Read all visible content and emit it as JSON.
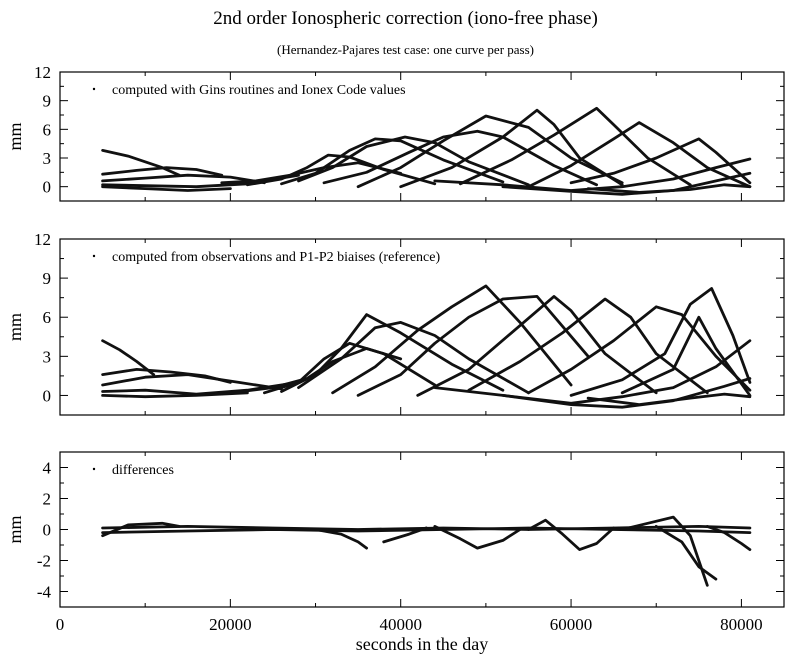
{
  "figure": {
    "title": "2nd order Ionospheric correction (iono-free phase)",
    "subtitle": "(Hernandez-Pajares test case: one curve per pass)",
    "xlabel": "seconds in the day"
  },
  "chart_data": [
    {
      "type": "line",
      "panel": "top",
      "legend": "computed with Gins routines and Ionex Code values",
      "legend_location": "top-left",
      "ylabel": "mm",
      "xlim": [
        0,
        85000
      ],
      "ylim": [
        -1.5,
        12
      ],
      "yticks": [
        0,
        3,
        6,
        9,
        12
      ],
      "xticks": [
        0,
        20000,
        40000,
        60000,
        80000
      ],
      "grid": false,
      "series": [
        {
          "x": [
            5000,
            8000,
            12000,
            14000
          ],
          "y": [
            3.8,
            3.2,
            2.0,
            1.2
          ]
        },
        {
          "x": [
            5000,
            9000,
            12500,
            16000,
            19000
          ],
          "y": [
            1.3,
            1.7,
            2.0,
            1.8,
            1.2
          ]
        },
        {
          "x": [
            5000,
            10000,
            15000,
            20000,
            24000
          ],
          "y": [
            0.6,
            0.9,
            1.2,
            1.0,
            0.4
          ]
        },
        {
          "x": [
            5000,
            10000,
            16000,
            22000,
            28000
          ],
          "y": [
            0.2,
            0.1,
            0.0,
            0.3,
            1.2
          ]
        },
        {
          "x": [
            5000,
            10000,
            15000,
            20000
          ],
          "y": [
            0.0,
            -0.2,
            -0.4,
            -0.2
          ]
        },
        {
          "x": [
            19000,
            23000,
            27000,
            31000,
            35000,
            40000
          ],
          "y": [
            0.4,
            0.6,
            1.2,
            2.0,
            2.5,
            1.4
          ]
        },
        {
          "x": [
            22000,
            26000,
            29000,
            31500,
            34000,
            38000,
            44000
          ],
          "y": [
            0.2,
            0.8,
            2.0,
            3.3,
            3.1,
            1.8,
            0.3
          ]
        },
        {
          "x": [
            26000,
            30000,
            34000,
            37000,
            40000,
            45000,
            52000
          ],
          "y": [
            0.3,
            1.4,
            3.8,
            5.0,
            4.8,
            2.8,
            0.5
          ]
        },
        {
          "x": [
            28000,
            32000,
            36000,
            40500,
            44000,
            48000,
            55000
          ],
          "y": [
            0.6,
            2.0,
            4.2,
            5.2,
            4.6,
            2.6,
            0.2
          ]
        },
        {
          "x": [
            31000,
            36000,
            41000,
            45000,
            49000,
            52000,
            58000,
            63000
          ],
          "y": [
            0.4,
            1.5,
            3.6,
            5.2,
            5.8,
            5.2,
            2.2,
            0.2
          ]
        },
        {
          "x": [
            35000,
            40000,
            45000,
            50000,
            55000,
            60000,
            66000
          ],
          "y": [
            0.0,
            2.0,
            4.8,
            7.4,
            6.2,
            3.0,
            0.4
          ]
        },
        {
          "x": [
            40000,
            46000,
            52000,
            56000,
            58000,
            61000,
            66000
          ],
          "y": [
            0.0,
            2.0,
            5.2,
            8.0,
            6.5,
            3.0,
            0.2
          ]
        },
        {
          "x": [
            47000,
            53000,
            58000,
            63000,
            65000,
            69000,
            74000
          ],
          "y": [
            0.3,
            2.8,
            5.4,
            8.2,
            6.5,
            3.0,
            0.2
          ]
        },
        {
          "x": [
            55000,
            60000,
            65000,
            68000,
            72000,
            76000,
            81000
          ],
          "y": [
            0.0,
            2.2,
            5.0,
            6.7,
            4.6,
            2.0,
            0.0
          ]
        },
        {
          "x": [
            60000,
            65000,
            70000,
            75000,
            77000,
            81000
          ],
          "y": [
            0.4,
            1.4,
            3.0,
            5.0,
            3.6,
            0.4
          ]
        },
        {
          "x": [
            44000,
            52000,
            60000,
            66000,
            72000,
            77000,
            81000
          ],
          "y": [
            0.6,
            0.2,
            -0.4,
            0.0,
            0.8,
            2.0,
            2.9
          ]
        },
        {
          "x": [
            52000,
            60000,
            66000,
            72000,
            78000,
            81000
          ],
          "y": [
            0.0,
            -0.5,
            -0.8,
            -0.4,
            0.8,
            1.4
          ]
        },
        {
          "x": [
            62000,
            68000,
            74000,
            78000,
            81000
          ],
          "y": [
            -0.2,
            -0.6,
            -0.3,
            0.2,
            0.0
          ]
        }
      ]
    },
    {
      "type": "line",
      "panel": "middle",
      "legend": "computed from observations and P1-P2 biaises (reference)",
      "legend_location": "top-left",
      "ylabel": "mm",
      "xlim": [
        0,
        85000
      ],
      "ylim": [
        -1.5,
        12
      ],
      "yticks": [
        0,
        3,
        6,
        9,
        12
      ],
      "xticks": [
        0,
        20000,
        40000,
        60000,
        80000
      ],
      "grid": false,
      "series": [
        {
          "x": [
            5000,
            7000,
            9000,
            11000
          ],
          "y": [
            4.2,
            3.5,
            2.6,
            1.6
          ]
        },
        {
          "x": [
            5000,
            9000,
            13000,
            17000,
            20000
          ],
          "y": [
            1.6,
            2.0,
            1.8,
            1.5,
            1.0
          ]
        },
        {
          "x": [
            5000,
            10000,
            15000,
            21000,
            26000
          ],
          "y": [
            0.8,
            1.4,
            1.6,
            1.0,
            0.5
          ]
        },
        {
          "x": [
            5000,
            10000,
            16000,
            22000,
            28000
          ],
          "y": [
            0.3,
            0.4,
            0.1,
            0.4,
            1.0
          ]
        },
        {
          "x": [
            5000,
            10000,
            16000,
            22000
          ],
          "y": [
            0.0,
            -0.1,
            0.0,
            0.2
          ]
        },
        {
          "x": [
            20000,
            25000,
            29000,
            32000,
            36000,
            40000
          ],
          "y": [
            0.2,
            0.6,
            1.3,
            2.6,
            3.6,
            2.8
          ]
        },
        {
          "x": [
            24000,
            28000,
            31000,
            34000,
            38000,
            44000
          ],
          "y": [
            0.2,
            1.0,
            2.8,
            4.0,
            3.2,
            0.8
          ]
        },
        {
          "x": [
            26000,
            30000,
            33000,
            36000,
            40000,
            46000,
            52000
          ],
          "y": [
            0.3,
            1.6,
            3.6,
            6.2,
            4.8,
            2.4,
            0.4
          ]
        },
        {
          "x": [
            28000,
            33000,
            37000,
            40000,
            44000,
            48000,
            55000
          ],
          "y": [
            0.6,
            2.8,
            5.2,
            5.6,
            4.6,
            2.8,
            0.2
          ]
        },
        {
          "x": [
            32000,
            37000,
            42000,
            46000,
            50000,
            54000,
            60000
          ],
          "y": [
            0.2,
            2.2,
            5.0,
            6.8,
            8.4,
            5.6,
            0.8
          ]
        },
        {
          "x": [
            35000,
            40000,
            44000,
            48000,
            52000,
            56000,
            62000
          ],
          "y": [
            0.0,
            1.6,
            4.0,
            6.0,
            7.4,
            7.6,
            3.0
          ]
        },
        {
          "x": [
            42000,
            48000,
            53000,
            58000,
            60000,
            64000,
            70000
          ],
          "y": [
            0.0,
            2.0,
            4.8,
            7.6,
            6.5,
            3.2,
            0.2
          ]
        },
        {
          "x": [
            48000,
            54000,
            59000,
            64000,
            67000,
            70000,
            76000
          ],
          "y": [
            0.4,
            2.6,
            4.8,
            7.4,
            6.0,
            3.2,
            0.2
          ]
        },
        {
          "x": [
            55000,
            60000,
            65000,
            70000,
            73000,
            77000,
            81000
          ],
          "y": [
            0.2,
            2.0,
            4.2,
            6.8,
            6.2,
            3.0,
            0.4
          ]
        },
        {
          "x": [
            60000,
            66000,
            71000,
            74000,
            76500,
            79000,
            81000
          ],
          "y": [
            0.0,
            1.2,
            3.2,
            7.0,
            8.2,
            4.6,
            1.0
          ]
        },
        {
          "x": [
            66000,
            72000,
            75000,
            77000,
            81000
          ],
          "y": [
            0.2,
            2.0,
            6.0,
            3.6,
            0.0
          ]
        },
        {
          "x": [
            44000,
            52000,
            60000,
            66000,
            72000,
            77000,
            81000
          ],
          "y": [
            0.6,
            0.0,
            -0.6,
            -0.1,
            0.6,
            2.2,
            4.2
          ]
        },
        {
          "x": [
            52000,
            60000,
            66000,
            72000,
            78000,
            81000
          ],
          "y": [
            0.0,
            -0.7,
            -0.9,
            -0.4,
            0.7,
            1.3
          ]
        },
        {
          "x": [
            62000,
            68000,
            74000,
            78000,
            81000
          ],
          "y": [
            -0.2,
            -0.7,
            -0.2,
            0.1,
            -0.1
          ]
        }
      ]
    },
    {
      "type": "line",
      "panel": "bottom",
      "legend": "differences",
      "legend_location": "top-left",
      "ylabel": "mm",
      "xlabel": "seconds in the day",
      "xlim": [
        0,
        85000
      ],
      "ylim": [
        -5,
        5
      ],
      "yticks": [
        -4,
        -2,
        0,
        2,
        4
      ],
      "xticks": [
        0,
        20000,
        40000,
        60000,
        80000
      ],
      "grid": false,
      "series": [
        {
          "x": [
            5000,
            15000,
            25000,
            35000,
            45000,
            55000,
            65000,
            75000,
            81000
          ],
          "y": [
            0.1,
            0.2,
            0.1,
            0.0,
            0.1,
            0.0,
            0.1,
            0.2,
            0.1
          ]
        },
        {
          "x": [
            5000,
            15000,
            25000,
            35000,
            45000,
            55000,
            65000,
            75000,
            81000
          ],
          "y": [
            -0.2,
            -0.1,
            0.0,
            -0.1,
            0.0,
            0.1,
            0.0,
            -0.1,
            -0.2
          ]
        },
        {
          "x": [
            5000,
            8000,
            12000,
            14000
          ],
          "y": [
            -0.4,
            0.3,
            0.4,
            0.2
          ]
        },
        {
          "x": [
            30000,
            33000,
            35000,
            36000
          ],
          "y": [
            0.0,
            -0.3,
            -0.8,
            -1.2
          ]
        },
        {
          "x": [
            38000,
            41000,
            43000
          ],
          "y": [
            -0.8,
            -0.3,
            0.1
          ]
        },
        {
          "x": [
            44000,
            47000,
            49000,
            52000,
            54000
          ],
          "y": [
            0.2,
            -0.6,
            -1.2,
            -0.7,
            0.0
          ]
        },
        {
          "x": [
            55000,
            57000,
            59000,
            61000,
            63000,
            65000
          ],
          "y": [
            0.0,
            0.6,
            -0.3,
            -1.3,
            -0.9,
            0.1
          ]
        },
        {
          "x": [
            66000,
            69000,
            72000,
            74000,
            75000,
            76000
          ],
          "y": [
            0.0,
            0.4,
            0.8,
            -0.4,
            -2.0,
            -3.6
          ]
        },
        {
          "x": [
            70000,
            73000,
            75000,
            77000
          ],
          "y": [
            0.2,
            -0.8,
            -2.4,
            -3.2
          ]
        },
        {
          "x": [
            76000,
            78000,
            80000,
            81000
          ],
          "y": [
            0.2,
            -0.2,
            -0.9,
            -1.3
          ]
        }
      ]
    }
  ]
}
